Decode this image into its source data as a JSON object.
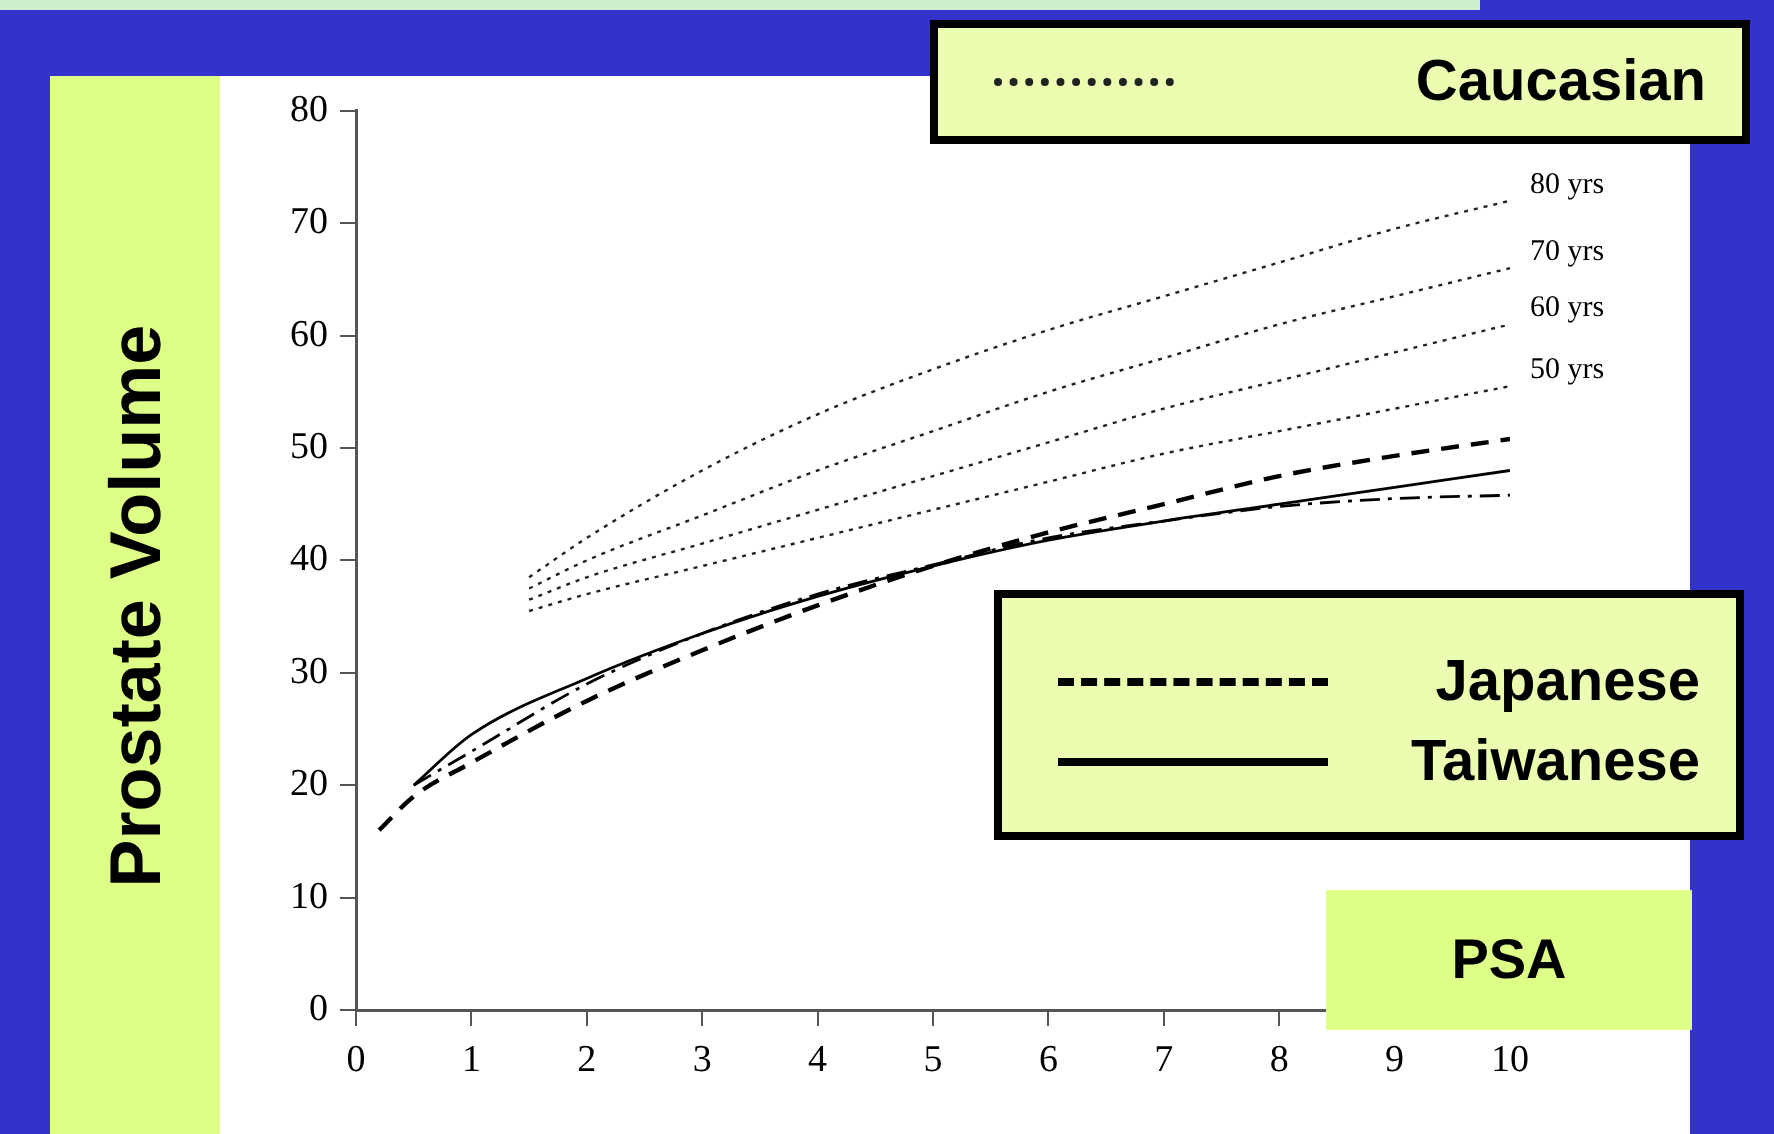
{
  "chart_data": {
    "type": "line",
    "xlabel": "PSA",
    "ylabel": "Prostate Volume",
    "legend_title": "Caucasian",
    "legend": "right",
    "grid": false,
    "marker": "none",
    "xlim": [
      0,
      10
    ],
    "xticks": [
      0,
      1,
      2,
      3,
      4,
      5,
      6,
      7,
      8,
      9,
      10
    ],
    "ylim": [
      0,
      80
    ],
    "yticks": [
      0,
      10,
      20,
      30,
      40,
      50,
      60,
      70,
      80
    ],
    "series": [
      {
        "name": "80 yrs",
        "color": "#222222",
        "line_style": "dotted",
        "x": [
          1.5,
          2,
          3,
          4,
          5,
          6,
          7,
          8,
          9,
          10
        ],
        "values": [
          38.5,
          42,
          48,
          53,
          57,
          60.5,
          63.5,
          66.5,
          69.5,
          72
        ]
      },
      {
        "name": "70 yrs",
        "color": "#222222",
        "line_style": "dotted",
        "x": [
          1.5,
          2,
          3,
          4,
          5,
          6,
          7,
          8,
          9,
          10
        ],
        "values": [
          37.5,
          40,
          44,
          48,
          51.5,
          55,
          58,
          61,
          63.5,
          66
        ]
      },
      {
        "name": "60 yrs",
        "color": "#222222",
        "line_style": "dotted",
        "x": [
          1.5,
          2,
          3,
          4,
          5,
          6,
          7,
          8,
          9,
          10
        ],
        "values": [
          36.5,
          38.5,
          41.5,
          44.5,
          47.5,
          50.5,
          53.5,
          56,
          58.5,
          61
        ]
      },
      {
        "name": "50 yrs",
        "color": "#222222",
        "line_style": "dotted",
        "x": [
          1.5,
          2,
          3,
          4,
          5,
          6,
          7,
          8,
          9,
          10
        ],
        "values": [
          35.5,
          37,
          39.5,
          42,
          44.5,
          47,
          49.5,
          51.5,
          53.5,
          55.5
        ]
      },
      {
        "name": "Japanese",
        "color": "#000000",
        "line_style": "dashed",
        "x": [
          0.2,
          0.5,
          1,
          2,
          3,
          4,
          5,
          6,
          7,
          8,
          9,
          10
        ],
        "values": [
          16,
          19,
          22,
          27.5,
          32,
          36,
          39.5,
          42.5,
          45,
          47.5,
          49.3,
          50.8
        ]
      },
      {
        "name": "Taiwanese",
        "color": "#000000",
        "line_style": "solid",
        "x": [
          0.5,
          1,
          2,
          3,
          4,
          5,
          6,
          7,
          8,
          9,
          10
        ],
        "values": [
          20,
          24.5,
          29.5,
          33.5,
          36.8,
          39.5,
          41.8,
          43.5,
          45,
          46.5,
          48
        ]
      },
      {
        "color": "#000000",
        "line_style": "dashdot",
        "x": [
          0.5,
          1,
          2,
          3,
          4,
          5,
          6,
          7,
          8,
          9,
          10
        ],
        "values": [
          20,
          23,
          29,
          33.5,
          37,
          39.6,
          42,
          43.5,
          44.8,
          45.5,
          45.8
        ]
      }
    ]
  }
}
